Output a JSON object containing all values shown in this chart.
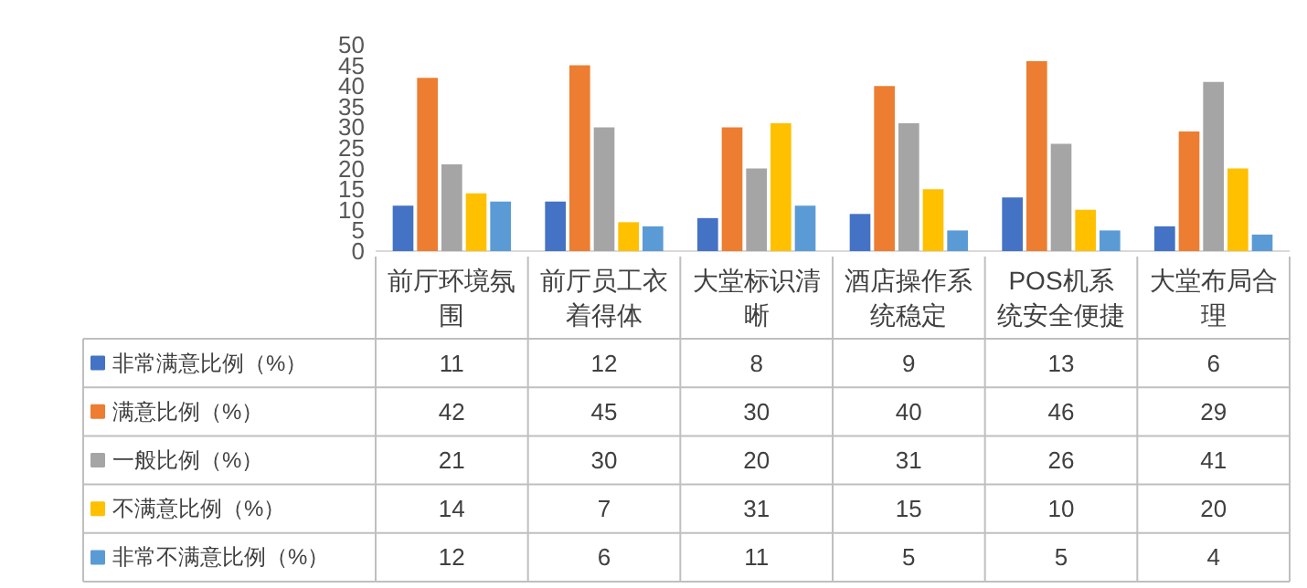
{
  "chart_data": {
    "type": "bar",
    "categories": [
      "前厅环境氛围",
      "前厅员工衣着得体",
      "大堂标识清晰",
      "酒店操作系统稳定",
      "POS机系统安全便捷",
      "大堂布局合理"
    ],
    "series": [
      {
        "name": "非常满意比例（%）",
        "color": "#4472c4",
        "values": [
          11,
          12,
          8,
          9,
          13,
          6
        ]
      },
      {
        "name": "满意比例（%）",
        "color": "#ed7d31",
        "values": [
          42,
          45,
          30,
          40,
          46,
          29
        ]
      },
      {
        "name": "一般比例（%）",
        "color": "#a5a5a5",
        "values": [
          21,
          30,
          20,
          31,
          26,
          41
        ]
      },
      {
        "name": "不满意比例（%）",
        "color": "#ffc000",
        "values": [
          14,
          7,
          31,
          15,
          10,
          20
        ]
      },
      {
        "name": "非常不满意比例（%）",
        "color": "#5b9bd5",
        "values": [
          12,
          6,
          11,
          5,
          5,
          4
        ]
      }
    ],
    "ylim": [
      0,
      50
    ],
    "yticks": [
      0,
      5,
      10,
      15,
      20,
      25,
      30,
      35,
      40,
      45,
      50
    ],
    "grid": false,
    "legend": "bottom",
    "data_labels": true
  }
}
